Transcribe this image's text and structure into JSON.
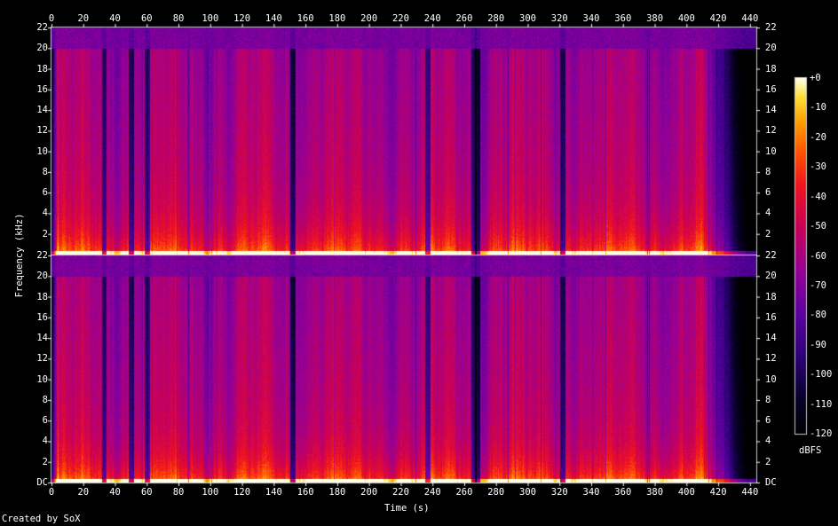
{
  "chart_data": {
    "type": "heatmap",
    "title": "",
    "xlabel": "Time (s)",
    "ylabel": "Frequency (kHz)",
    "x_ticks": [
      "0",
      "20",
      "40",
      "60",
      "80",
      "100",
      "120",
      "140",
      "160",
      "180",
      "200",
      "220",
      "240",
      "260",
      "280",
      "300",
      "320",
      "340",
      "360",
      "380",
      "400",
      "420",
      "440"
    ],
    "xlim": [
      0,
      444
    ],
    "ylim": [
      0,
      22
    ],
    "channels": [
      {
        "y_ticks": [
          "22",
          "20",
          "18",
          "16",
          "14",
          "12",
          "10",
          "8",
          "6",
          "4",
          "2"
        ]
      },
      {
        "y_ticks": [
          "22",
          "20",
          "18",
          "16",
          "14",
          "12",
          "10",
          "8",
          "6",
          "4",
          "2",
          "DC"
        ]
      }
    ],
    "lowpass_cutoff_khz": 20,
    "quiet_dips_s": [
      33,
      50,
      60,
      152,
      237,
      266,
      268,
      322
    ],
    "fade_out_s": [
      410,
      438
    ],
    "colorbar": {
      "label": "dBFS",
      "ticks": [
        "+0",
        "-10",
        "-20",
        "-30",
        "-40",
        "-50",
        "-60",
        "-70",
        "-80",
        "-90",
        "-100",
        "-110",
        "-120"
      ],
      "range": [
        -120,
        0
      ]
    },
    "colors": {
      "background": "#000000",
      "text": "#ffffff"
    }
  },
  "footer": {
    "credit": "Created by SoX"
  }
}
